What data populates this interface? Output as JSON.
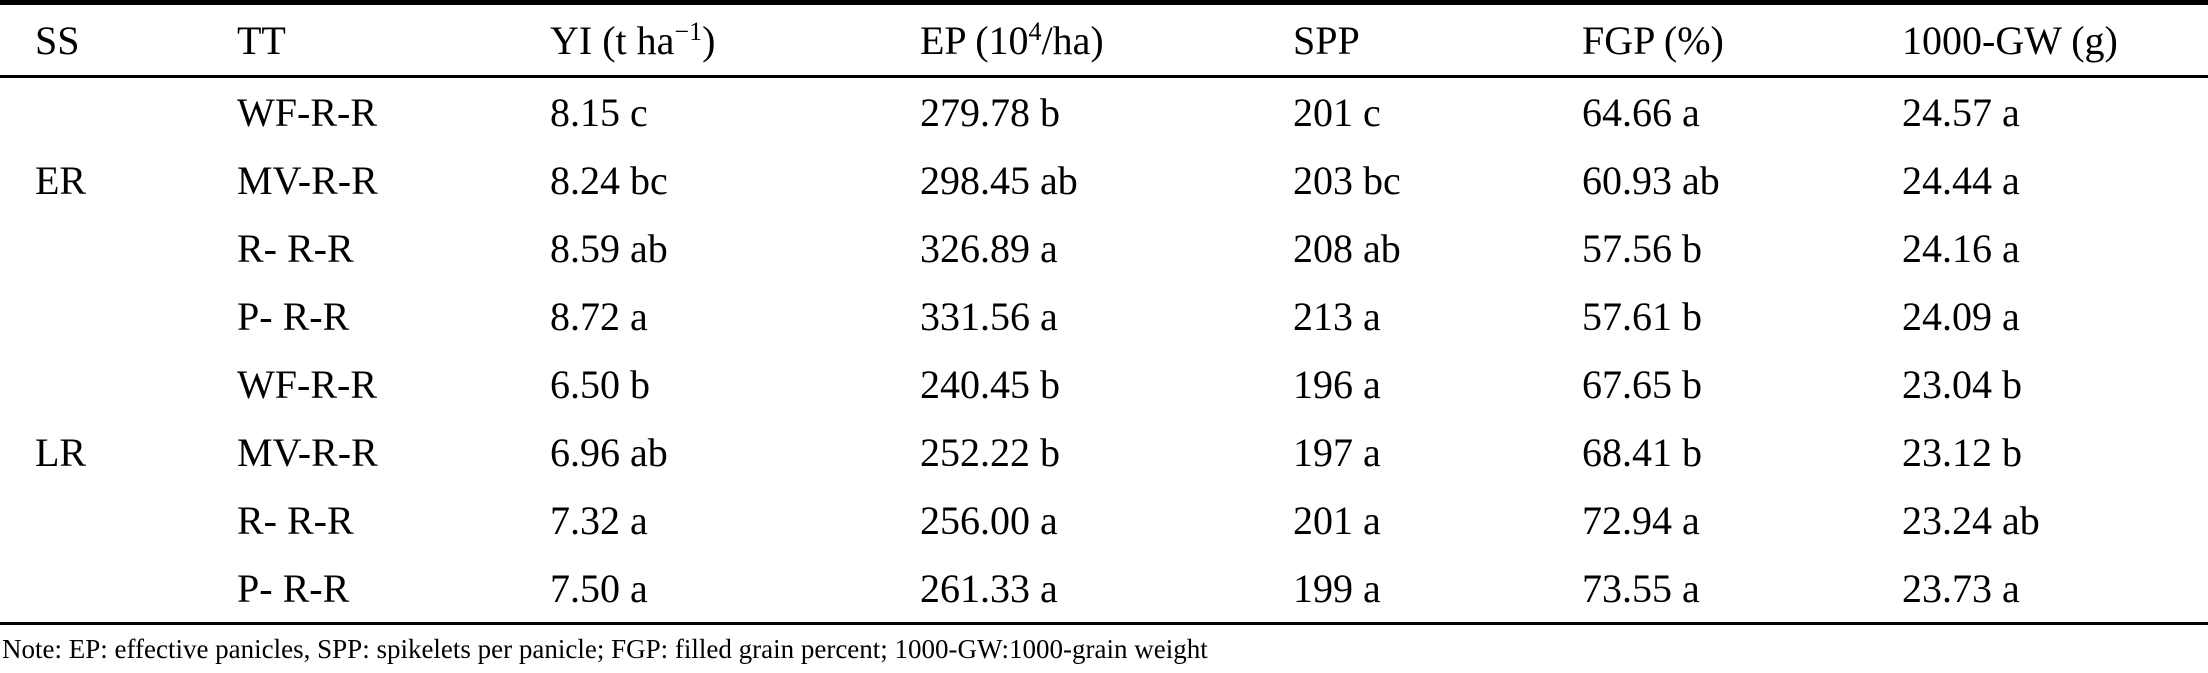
{
  "colors": {
    "text": "#000000",
    "background": "#ffffff",
    "rule": "#000000"
  },
  "table": {
    "columns": {
      "ss": {
        "label": "SS"
      },
      "tt": {
        "label": "TT"
      },
      "yi": {
        "label_pre": "YI (t ha",
        "label_sup": "−1",
        "label_post": ")"
      },
      "ep": {
        "label_pre": "EP (10",
        "label_sup": "4",
        "label_post": "/ha)"
      },
      "spp": {
        "label": "SPP"
      },
      "fgp": {
        "label": "FGP (%)"
      },
      "gw": {
        "label": "1000-GW (g)"
      }
    },
    "rows": [
      {
        "ss": "",
        "tt": "WF-R-R",
        "yi": "8.15 c",
        "ep": "279.78 b",
        "spp": "201 c",
        "fgp": "64.66 a",
        "gw": "24.57 a"
      },
      {
        "ss": "ER",
        "tt": "MV-R-R",
        "yi": "8.24 bc",
        "ep": "298.45 ab",
        "spp": "203 bc",
        "fgp": "60.93 ab",
        "gw": "24.44 a"
      },
      {
        "ss": "",
        "tt": "R- R-R",
        "yi": "8.59 ab",
        "ep": "326.89 a",
        "spp": "208 ab",
        "fgp": "57.56 b",
        "gw": "24.16 a"
      },
      {
        "ss": "",
        "tt": "P- R-R",
        "yi": "8.72 a",
        "ep": "331.56 a",
        "spp": "213 a",
        "fgp": "57.61 b",
        "gw": "24.09 a"
      },
      {
        "ss": "",
        "tt": "WF-R-R",
        "yi": "6.50 b",
        "ep": "240.45 b",
        "spp": "196 a",
        "fgp": "67.65 b",
        "gw": "23.04 b"
      },
      {
        "ss": "LR",
        "tt": "MV-R-R",
        "yi": "6.96 ab",
        "ep": "252.22 b",
        "spp": "197 a",
        "fgp": "68.41 b",
        "gw": "23.12 b"
      },
      {
        "ss": "",
        "tt": "R- R-R",
        "yi": "7.32 a",
        "ep": "256.00 a",
        "spp": "201 a",
        "fgp": "72.94 a",
        "gw": "23.24 ab"
      },
      {
        "ss": "",
        "tt": "P- R-R",
        "yi": "7.50 a",
        "ep": "261.33 a",
        "spp": "199 a",
        "fgp": "73.55 a",
        "gw": "23.73 a"
      }
    ],
    "note": "Note: EP: effective panicles, SPP: spikelets per panicle; FGP: filled grain percent; 1000-GW:1000-grain weight"
  }
}
